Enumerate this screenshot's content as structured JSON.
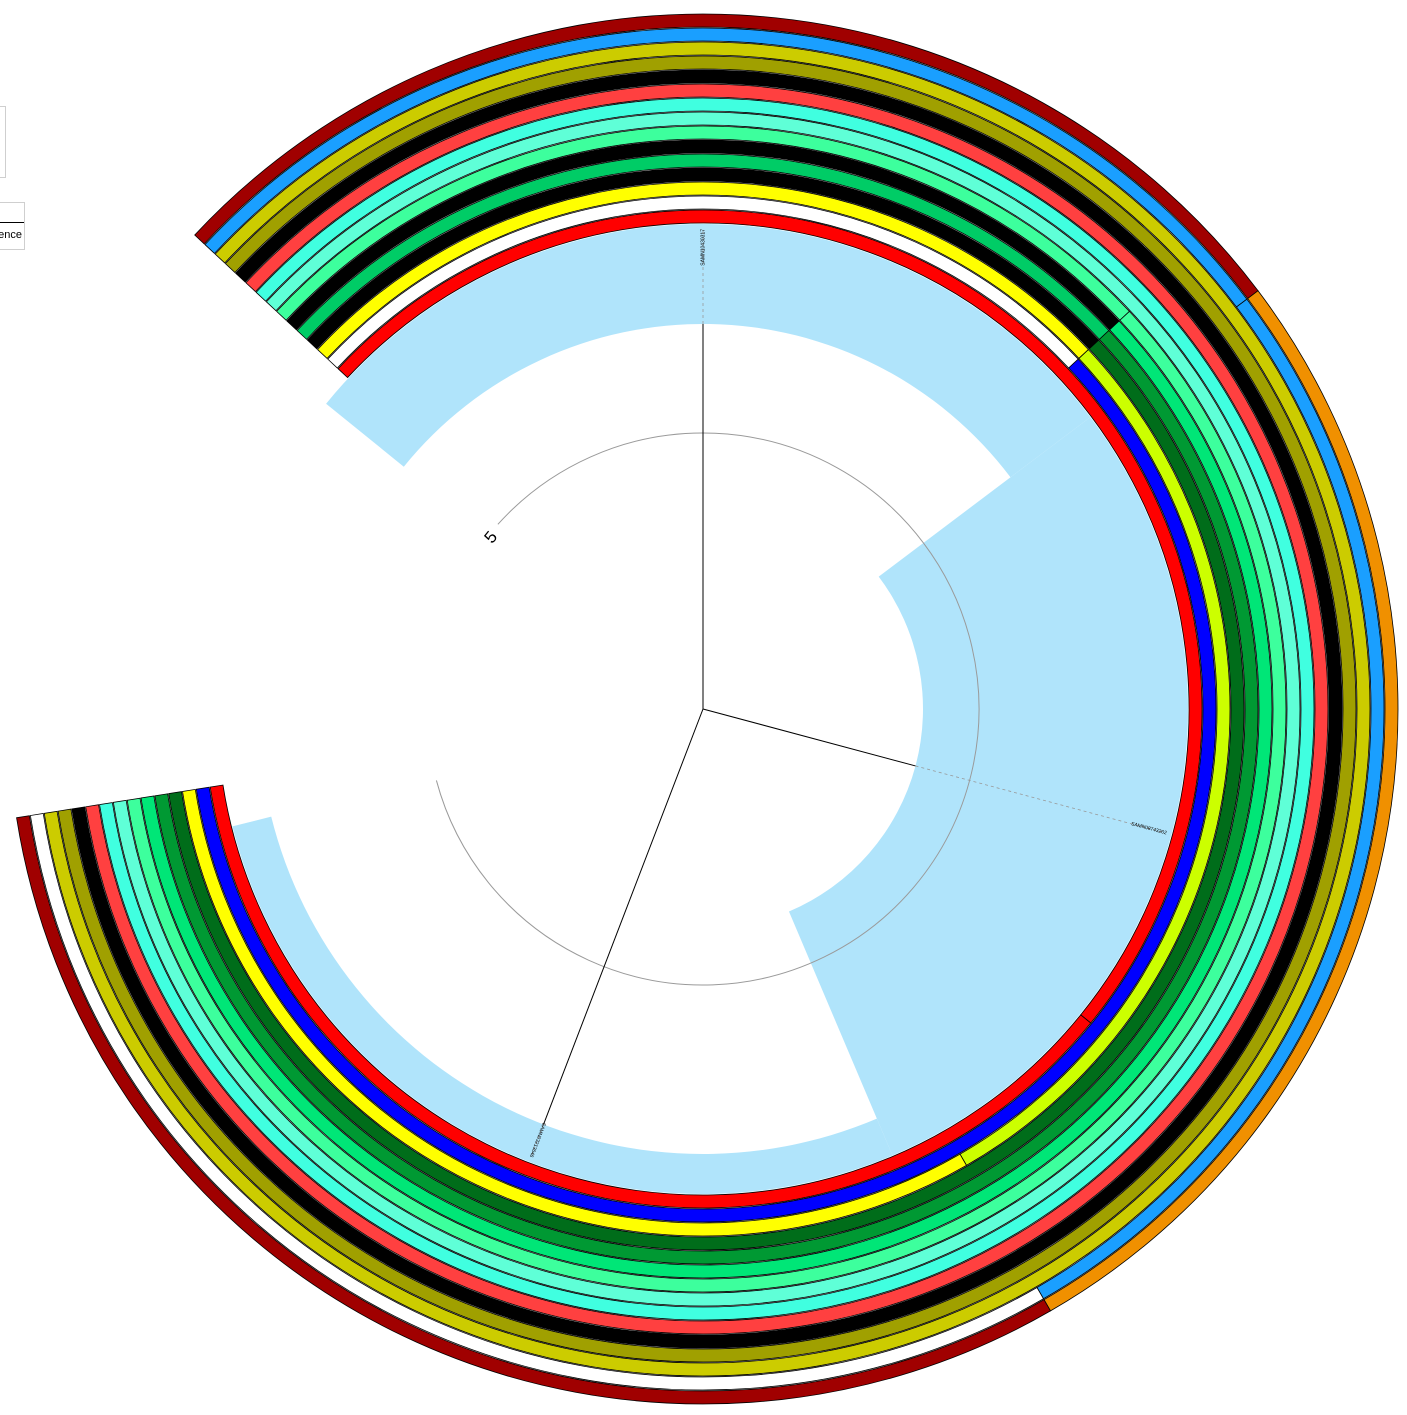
{
  "scale_label": "5",
  "legend": {
    "partial_label": "ence"
  },
  "leaves": [
    {
      "id": "leaf-1",
      "label": "SAMN10430317",
      "angle_deg": 0
    },
    {
      "id": "leaf-2",
      "label": "SAMN08743262",
      "angle_deg": 105
    },
    {
      "id": "leaf-3",
      "label": "SAMN03213646",
      "angle_deg": 201
    }
  ],
  "clade_highlight_color": "#b0e4fb",
  "rings": [
    {
      "name": "ring-1",
      "segments": [
        {
          "from": -47,
          "to": 129,
          "color": "#ff0000"
        },
        {
          "from": 129,
          "to": 261,
          "color": "#ff0000"
        }
      ]
    },
    {
      "name": "ring-2",
      "segments": [
        {
          "from": -47,
          "to": 47,
          "color": "#ffffff"
        },
        {
          "from": 47,
          "to": 261,
          "color": "#0000ff"
        }
      ]
    },
    {
      "name": "ring-3",
      "segments": [
        {
          "from": -47,
          "to": 47,
          "color": "#ffff00"
        },
        {
          "from": 47,
          "to": 150,
          "color": "#ccff00"
        },
        {
          "from": 150,
          "to": 261,
          "color": "#ffff00"
        }
      ]
    },
    {
      "name": "ring-4",
      "segments": [
        {
          "from": -47,
          "to": 47,
          "color": "#000000"
        },
        {
          "from": 47,
          "to": 261,
          "color": "#006d1a"
        }
      ]
    },
    {
      "name": "ring-5",
      "segments": [
        {
          "from": -47,
          "to": 47,
          "color": "#00cc66"
        },
        {
          "from": 47,
          "to": 261,
          "color": "#009933"
        }
      ]
    },
    {
      "name": "ring-6",
      "segments": [
        {
          "from": -47,
          "to": 47,
          "color": "#000000"
        },
        {
          "from": 47,
          "to": 261,
          "color": "#00e677"
        }
      ]
    },
    {
      "name": "ring-7",
      "segments": [
        {
          "from": -47,
          "to": 47,
          "color": "#3dff9d"
        },
        {
          "from": 47,
          "to": 261,
          "color": "#3dff9d"
        }
      ]
    },
    {
      "name": "ring-8",
      "segments": [
        {
          "from": -47,
          "to": 261,
          "color": "#5fffd7"
        }
      ]
    },
    {
      "name": "ring-9",
      "segments": [
        {
          "from": -47,
          "to": 261,
          "color": "#40ffe0"
        }
      ]
    },
    {
      "name": "ring-10",
      "segments": [
        {
          "from": -47,
          "to": 261,
          "color": "#ff4040"
        }
      ]
    },
    {
      "name": "ring-11",
      "segments": [
        {
          "from": -47,
          "to": 261,
          "color": "#000000"
        }
      ]
    },
    {
      "name": "ring-12",
      "segments": [
        {
          "from": -47,
          "to": 261,
          "color": "#a0a000"
        }
      ]
    },
    {
      "name": "ring-13",
      "segments": [
        {
          "from": -47,
          "to": 261,
          "color": "#cccc00"
        }
      ]
    },
    {
      "name": "ring-14",
      "segments": [
        {
          "from": -47,
          "to": 53,
          "color": "#1a9fff"
        },
        {
          "from": 53,
          "to": 150,
          "color": "#1a9fff"
        },
        {
          "from": 150,
          "to": 261,
          "color": "#ffffff"
        }
      ]
    },
    {
      "name": "ring-15",
      "segments": [
        {
          "from": -47,
          "to": 53,
          "color": "#a00000"
        },
        {
          "from": 53,
          "to": 150,
          "color": "#f09000"
        },
        {
          "from": 150,
          "to": 261,
          "color": "#a00000"
        }
      ]
    }
  ]
}
